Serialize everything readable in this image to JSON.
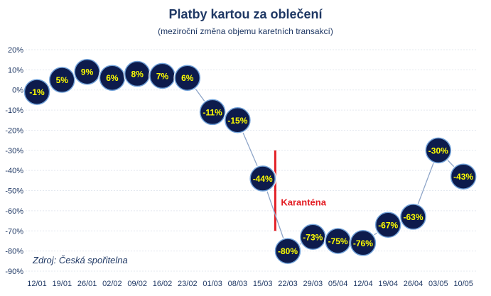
{
  "chart_data": {
    "type": "line",
    "title": "Platby kartou za oblečení",
    "subtitle": "(meziroční změna objemu karetních transakcí)",
    "xlabel": "",
    "ylabel": "",
    "ylim": [
      -90,
      20
    ],
    "yticks": [
      20,
      10,
      0,
      -10,
      -20,
      -30,
      -40,
      -50,
      -60,
      -70,
      -80,
      -90
    ],
    "ytick_labels": [
      "20%",
      "10%",
      "0%",
      "-10%",
      "-20%",
      "-30%",
      "-40%",
      "-50%",
      "-60%",
      "-70%",
      "-80%",
      "-90%"
    ],
    "categories": [
      "12/01",
      "19/01",
      "26/01",
      "02/02",
      "09/02",
      "16/02",
      "23/02",
      "01/03",
      "08/03",
      "15/03",
      "22/03",
      "29/03",
      "05/04",
      "12/04",
      "19/04",
      "26/04",
      "03/05",
      "10/05"
    ],
    "series": [
      {
        "values": [
          -1,
          5,
          9,
          6,
          8,
          7,
          6,
          -11,
          -15,
          -44,
          -80,
          -73,
          -75,
          -76,
          -67,
          -63,
          -30,
          -43
        ],
        "labels": [
          "-1%",
          "5%",
          "9%",
          "6%",
          "8%",
          "7%",
          "6%",
          "-11%",
          "-15%",
          "-44%",
          "-80%",
          "-73%",
          "-75%",
          "-76%",
          "-67%",
          "-63%",
          "-30%",
          "-43%"
        ]
      }
    ],
    "grid": true,
    "annotation": {
      "text": "Karanténa",
      "between_categories": [
        "15/03",
        "22/03"
      ],
      "y_range": [
        -70,
        -30
      ],
      "color": "#e31e24"
    },
    "source": "Zdroj: Česká spořitelna",
    "colors": {
      "marker_fill": "#0d1b4c",
      "marker_ring": "#6fa0d8",
      "data_label": "#ffff00",
      "line": "#8ea5c8",
      "axis_text": "#1f3864",
      "annotation": "#e31e24"
    }
  }
}
